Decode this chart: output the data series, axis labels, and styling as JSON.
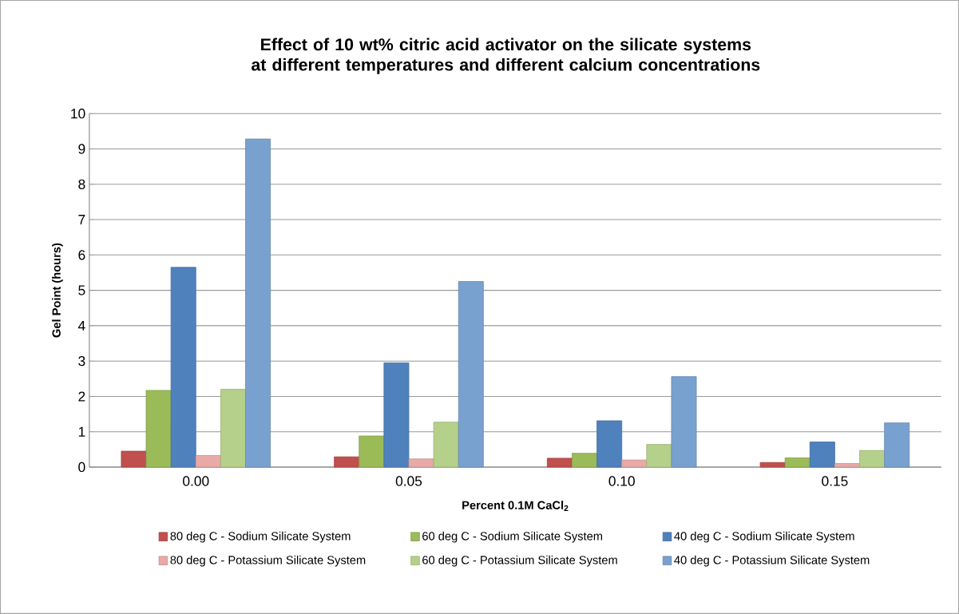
{
  "chart_data": {
    "type": "bar",
    "title": "Effect of 10 wt% citric acid activator on the silicate systems at different temperatures and different calcium concentrations",
    "xlabel": "Percent 0.1M CaCl$_{2}$",
    "ylabel": "Gel Point (hours)",
    "categories": [
      "0.00",
      "0.05",
      "0.10",
      "0.15"
    ],
    "series": [
      {
        "name": "80 deg C - Sodium Silicate System",
        "color": "#c0504d",
        "values": [
          0.45,
          0.29,
          0.25,
          0.13
        ]
      },
      {
        "name": "60 deg C - Sodium Silicate System",
        "color": "#9bbb59",
        "values": [
          2.17,
          0.88,
          0.39,
          0.26
        ]
      },
      {
        "name": "40 deg C - Sodium Silicate System",
        "color": "#4f81bd",
        "values": [
          5.65,
          2.95,
          1.31,
          0.71
        ]
      },
      {
        "name": "80 deg C - Potassium Silicate System",
        "color": "#e8a9a7",
        "values": [
          0.33,
          0.23,
          0.2,
          0.1
        ]
      },
      {
        "name": "60 deg C - Potassium Silicate System",
        "color": "#b5d08a",
        "values": [
          2.2,
          1.27,
          0.64,
          0.47
        ]
      },
      {
        "name": "40 deg C - Potassium Silicate System",
        "color": "#79a1cf",
        "values": [
          9.28,
          5.25,
          2.56,
          1.25
        ]
      }
    ],
    "ylim": [
      0,
      10
    ],
    "yticks": [
      0,
      1,
      2,
      3,
      4,
      5,
      6,
      7,
      8,
      9,
      10
    ],
    "grid": "y",
    "legend": "bottom"
  }
}
